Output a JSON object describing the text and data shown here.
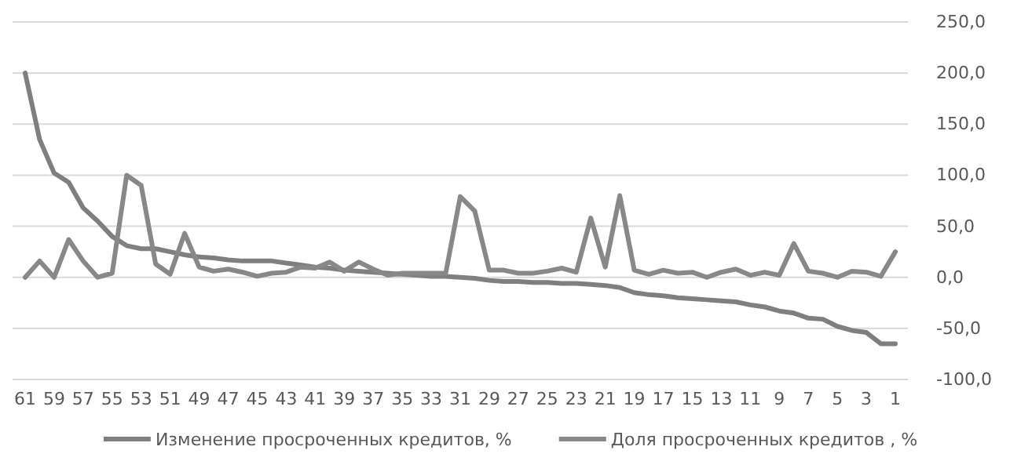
{
  "chart_data": {
    "type": "line",
    "categories": [
      "61",
      null,
      "59",
      null,
      "57",
      null,
      "55",
      null,
      "53",
      null,
      "51",
      null,
      "49",
      null,
      "47",
      null,
      "45",
      null,
      "43",
      null,
      "41",
      null,
      "39",
      null,
      "37",
      null,
      "35",
      null,
      "33",
      null,
      "31",
      null,
      "29",
      null,
      "27",
      null,
      "25",
      null,
      "23",
      null,
      "21",
      null,
      "19",
      null,
      "17",
      null,
      "15",
      null,
      "13",
      null,
      "11",
      null,
      "9",
      null,
      "7",
      null,
      "5",
      null,
      "3",
      null,
      "1"
    ],
    "series": [
      {
        "name": "Изменение просроченных кредитов, %",
        "color": "#7f7f7f",
        "values": [
          200,
          135,
          102,
          93,
          68,
          55,
          40,
          31,
          28,
          28,
          25,
          22,
          20,
          19,
          17,
          16,
          16,
          16,
          14,
          12,
          10,
          9,
          7,
          6,
          5,
          4,
          3,
          2,
          1,
          1,
          0,
          -1,
          -3,
          -4,
          -4,
          -5,
          -5,
          -6,
          -6,
          -7,
          -8,
          -10,
          -15,
          -17,
          -18,
          -20,
          -21,
          -22,
          -23,
          -24,
          -27,
          -29,
          -33,
          -35,
          -40,
          -41,
          -48,
          -52,
          -54,
          -65,
          -65
        ]
      },
      {
        "name": "Доля просроченных кредитов , %",
        "color": "#888888",
        "values": [
          0,
          16,
          0,
          37,
          16,
          0,
          4,
          100,
          90,
          13,
          3,
          43,
          10,
          6,
          8,
          5,
          1,
          4,
          5,
          10,
          9,
          15,
          6,
          15,
          8,
          2,
          4,
          4,
          4,
          4,
          79,
          65,
          7,
          7,
          4,
          4,
          6,
          9,
          5,
          58,
          10,
          80,
          7,
          3,
          7,
          4,
          5,
          0,
          5,
          8,
          2,
          5,
          2,
          33,
          6,
          4,
          0,
          6,
          5,
          1,
          25
        ]
      }
    ],
    "ylim": [
      -100,
      250
    ],
    "yticks": [
      {
        "value": -100,
        "label": "-100,0"
      },
      {
        "value": -50,
        "label": "-50,0"
      },
      {
        "value": 0,
        "label": "0,0"
      },
      {
        "value": 50,
        "label": "50,0"
      },
      {
        "value": 100,
        "label": "100,0"
      },
      {
        "value": 150,
        "label": "150,0"
      },
      {
        "value": 200,
        "label": "200,0"
      },
      {
        "value": 250,
        "label": "250,0"
      }
    ],
    "grid": "y",
    "legend": "bottom",
    "marker": "none",
    "line_style": "solid"
  }
}
